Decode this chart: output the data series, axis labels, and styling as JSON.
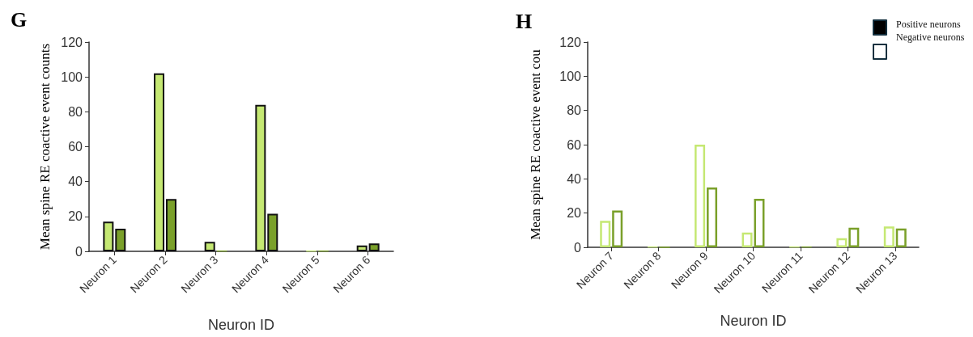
{
  "chart_data": [
    {
      "type": "bar",
      "title": "G",
      "xlabel": "Neuron ID",
      "ylabel": "Mean spine RE coactive event counts",
      "categories": [
        "Neuron 1",
        "Neuron 2",
        "Neuron 3",
        "Neuron 4",
        "Neuron 5",
        "Neuron 6"
      ],
      "series": [
        {
          "color": "#c5e873",
          "values": [
            17,
            102,
            5.4,
            84,
            0.3,
            3.4
          ]
        },
        {
          "color": "#7aa02a",
          "values": [
            13,
            30,
            0.3,
            21.6,
            0.3,
            4.5
          ]
        }
      ],
      "ylim": [
        0,
        120
      ],
      "yticks": [
        0,
        20,
        40,
        60,
        80,
        100,
        120
      ],
      "grid": false
    },
    {
      "type": "bar",
      "title": "H",
      "xlabel": "Neuron ID",
      "ylabel": "Mean spine RE coactive event cou",
      "categories": [
        "Neuron 7",
        "Neuron 8",
        "Neuron 9",
        "Neuron 10",
        "Neuron 11",
        "Neuron 12",
        "Neuron 13"
      ],
      "series": [
        {
          "color": "#c5e873",
          "values": [
            15.5,
            0.3,
            60,
            8.6,
            0.3,
            5.3,
            12.2
          ]
        },
        {
          "color": "#7aa02a",
          "values": [
            21.5,
            0,
            35,
            28.3,
            0.3,
            11.5,
            11
          ]
        }
      ],
      "ylim": [
        0,
        120
      ],
      "yticks": [
        0,
        20,
        40,
        60,
        80,
        100,
        120
      ],
      "grid": false,
      "annotations": [
        "Positive neurons",
        "Negative neurons"
      ]
    }
  ]
}
